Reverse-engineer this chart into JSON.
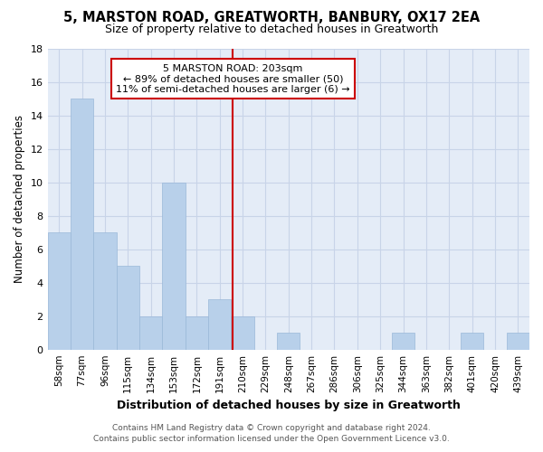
{
  "title": "5, MARSTON ROAD, GREATWORTH, BANBURY, OX17 2EA",
  "subtitle": "Size of property relative to detached houses in Greatworth",
  "xlabel": "Distribution of detached houses by size in Greatworth",
  "ylabel": "Number of detached properties",
  "categories": [
    "58sqm",
    "77sqm",
    "96sqm",
    "115sqm",
    "134sqm",
    "153sqm",
    "172sqm",
    "191sqm",
    "210sqm",
    "229sqm",
    "248sqm",
    "267sqm",
    "286sqm",
    "306sqm",
    "325sqm",
    "344sqm",
    "363sqm",
    "382sqm",
    "401sqm",
    "420sqm",
    "439sqm"
  ],
  "values": [
    7,
    15,
    7,
    5,
    2,
    10,
    2,
    3,
    2,
    0,
    1,
    0,
    0,
    0,
    0,
    1,
    0,
    0,
    1,
    0,
    1
  ],
  "bar_color": "#b8d0ea",
  "bar_edge_color": "#9ab8d8",
  "vline_color": "#cc0000",
  "annotation_line1": "5 MARSTON ROAD: 203sqm",
  "annotation_line2": "← 89% of detached houses are smaller (50)",
  "annotation_line3": "11% of semi-detached houses are larger (6) →",
  "annotation_box_color": "#cc0000",
  "annotation_bg": "#ffffff",
  "ylim": [
    0,
    18
  ],
  "yticks": [
    0,
    2,
    4,
    6,
    8,
    10,
    12,
    14,
    16,
    18
  ],
  "grid_color": "#c8d4e8",
  "bg_color": "#e4ecf7",
  "footer_line1": "Contains HM Land Registry data © Crown copyright and database right 2024.",
  "footer_line2": "Contains public sector information licensed under the Open Government Licence v3.0.",
  "title_fontsize": 10.5,
  "subtitle_fontsize": 9
}
